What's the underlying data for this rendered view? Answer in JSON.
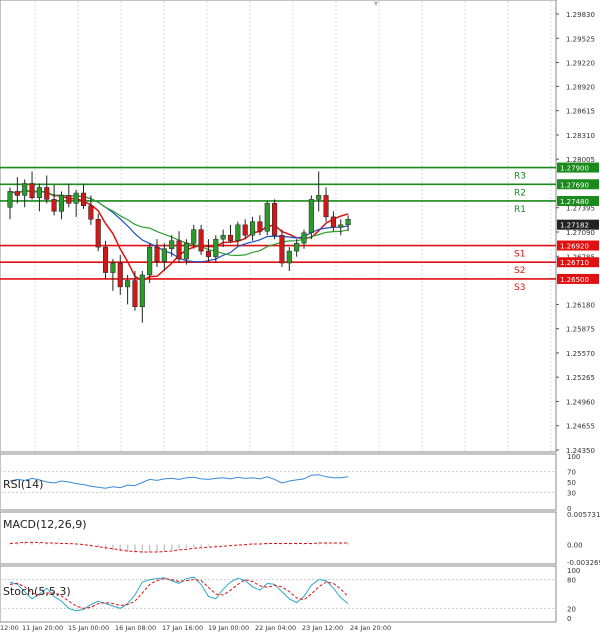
{
  "chart_data": {
    "type": "candlestick",
    "instrument_hint": "GBP/USD",
    "main_panel": {
      "y_axis_ticks": [
        "1.29830",
        "1.29525",
        "1.29220",
        "1.28920",
        "1.28615",
        "1.28310",
        "1.28005",
        "1.27395",
        "1.27090",
        "1.26785",
        "1.26180",
        "1.25875",
        "1.25570",
        "1.25265",
        "1.24960",
        "1.24655",
        "1.24350"
      ],
      "ylim": [
        1.2435,
        1.2983
      ],
      "current_price": {
        "value": 1.27182,
        "label": "1.27182"
      },
      "levels": [
        {
          "name": "R3",
          "value": 1.279,
          "label": "1.27900",
          "color": "#1a8a1a"
        },
        {
          "name": "R2",
          "value": 1.2769,
          "label": "1.27690",
          "color": "#1a8a1a"
        },
        {
          "name": "R1",
          "value": 1.2748,
          "label": "1.27480",
          "color": "#1a8a1a"
        },
        {
          "name": "S1",
          "value": 1.2692,
          "label": "1.26920",
          "color": "#e01010"
        },
        {
          "name": "S2",
          "value": 1.2671,
          "label": "1.26710",
          "color": "#e01010"
        },
        {
          "name": "S3",
          "value": 1.265,
          "label": "1.26500",
          "color": "#e01010"
        }
      ],
      "candles": [
        [
          1.274,
          1.2765,
          1.2725,
          1.276
        ],
        [
          1.276,
          1.2778,
          1.2745,
          1.2755
        ],
        [
          1.2755,
          1.2775,
          1.274,
          1.277
        ],
        [
          1.277,
          1.2785,
          1.275,
          1.2752
        ],
        [
          1.2752,
          1.277,
          1.2735,
          1.2765
        ],
        [
          1.2765,
          1.278,
          1.2745,
          1.275
        ],
        [
          1.275,
          1.2768,
          1.273,
          1.2735
        ],
        [
          1.2735,
          1.276,
          1.2725,
          1.2755
        ],
        [
          1.2755,
          1.277,
          1.274,
          1.2745
        ],
        [
          1.2745,
          1.2762,
          1.2728,
          1.2758
        ],
        [
          1.2758,
          1.277,
          1.2738,
          1.2742
        ],
        [
          1.2742,
          1.2755,
          1.2718,
          1.2725
        ],
        [
          1.2725,
          1.2732,
          1.2685,
          1.269
        ],
        [
          1.269,
          1.2698,
          1.265,
          1.2658
        ],
        [
          1.2658,
          1.2675,
          1.2635,
          1.267
        ],
        [
          1.267,
          1.268,
          1.263,
          1.264
        ],
        [
          1.264,
          1.2655,
          1.2618,
          1.2648
        ],
        [
          1.2648,
          1.266,
          1.261,
          1.2615
        ],
        [
          1.2615,
          1.266,
          1.2595,
          1.2655
        ],
        [
          1.2655,
          1.2695,
          1.2645,
          1.269
        ],
        [
          1.269,
          1.27,
          1.2665,
          1.2672
        ],
        [
          1.2672,
          1.2695,
          1.266,
          1.2688
        ],
        [
          1.2688,
          1.2705,
          1.2678,
          1.2698
        ],
        [
          1.2698,
          1.271,
          1.267,
          1.2675
        ],
        [
          1.2675,
          1.27,
          1.2668,
          1.2695
        ],
        [
          1.2695,
          1.2718,
          1.2688,
          1.2712
        ],
        [
          1.2712,
          1.2718,
          1.268,
          1.2685
        ],
        [
          1.2685,
          1.27,
          1.2672,
          1.2678
        ],
        [
          1.2678,
          1.2705,
          1.267,
          1.27
        ],
        [
          1.27,
          1.2712,
          1.269,
          1.2705
        ],
        [
          1.2705,
          1.2718,
          1.2695,
          1.2698
        ],
        [
          1.2698,
          1.2722,
          1.2692,
          1.2718
        ],
        [
          1.2718,
          1.2725,
          1.27,
          1.2705
        ],
        [
          1.2705,
          1.2728,
          1.2698,
          1.2722
        ],
        [
          1.2722,
          1.273,
          1.2705,
          1.271
        ],
        [
          1.271,
          1.2748,
          1.2705,
          1.2745
        ],
        [
          1.2745,
          1.275,
          1.27,
          1.2705
        ],
        [
          1.2705,
          1.2712,
          1.2665,
          1.267
        ],
        [
          1.267,
          1.269,
          1.266,
          1.2685
        ],
        [
          1.2685,
          1.27,
          1.2678,
          1.2695
        ],
        [
          1.2695,
          1.2712,
          1.2688,
          1.2708
        ],
        [
          1.2708,
          1.2755,
          1.27,
          1.275
        ],
        [
          1.275,
          1.2785,
          1.2735,
          1.2755
        ],
        [
          1.2755,
          1.2765,
          1.2722,
          1.2728
        ],
        [
          1.2728,
          1.2735,
          1.271,
          1.2715
        ],
        [
          1.2715,
          1.2725,
          1.2705,
          1.2718
        ],
        [
          1.2718,
          1.273,
          1.271,
          1.2725
        ]
      ],
      "x_axis_labels": [
        "12:00",
        "11 Jan 20:00",
        "15 Jan 00:00",
        "16 Jan 08:00",
        "17 Jan 16:00",
        "19 Jan 00:00",
        "22 Jan 04:00",
        "23 Jan 12:00",
        "24 Jan 20:00"
      ],
      "moving_averages": [
        {
          "name": "MA fast",
          "color": "#e01010"
        },
        {
          "name": "MA medium",
          "color": "#2050c8"
        },
        {
          "name": "MA slow",
          "color": "#30a030"
        }
      ]
    },
    "rsi_panel": {
      "title": "RSI(14)",
      "y_axis_ticks": [
        "100",
        "70",
        "50",
        "30",
        "0"
      ],
      "ylim": [
        0,
        100
      ],
      "values": [
        52,
        55,
        53,
        57,
        54,
        50,
        48,
        52,
        50,
        47,
        45,
        42,
        40,
        38,
        41,
        39,
        44,
        43,
        49,
        55,
        53,
        56,
        57,
        55,
        58,
        59,
        56,
        55,
        57,
        58,
        56,
        59,
        57,
        58,
        56,
        60,
        55,
        48,
        52,
        54,
        56,
        63,
        64,
        60,
        58,
        58,
        60
      ],
      "color": "#3a8ad8"
    },
    "macd_panel": {
      "title": "MACD(12,26,9)",
      "y_axis_ticks": [
        "0.005731",
        "0.00",
        "-0.003269"
      ],
      "ylim": [
        -0.003269,
        0.005731
      ],
      "histogram": [
        0.0003,
        0.0004,
        0.0005,
        0.0005,
        0.0004,
        0.0003,
        0.0002,
        0.0002,
        0.0001,
        0.0,
        -0.0001,
        -0.0003,
        -0.0006,
        -0.0009,
        -0.0011,
        -0.0013,
        -0.0014,
        -0.0015,
        -0.0016,
        -0.0015,
        -0.0014,
        -0.0012,
        -0.001,
        -0.0008,
        -0.0006,
        -0.0005,
        -0.0004,
        -0.0003,
        -0.0002,
        -0.0001,
        0.0,
        0.0001,
        0.0001,
        0.0002,
        0.0002,
        0.0003,
        0.0003,
        0.0002,
        0.0001,
        0.0001,
        0.0002,
        0.0003,
        0.0004,
        0.0004,
        0.0003,
        0.0003,
        0.0003
      ],
      "signal": [
        0.0002,
        0.0003,
        0.0004,
        0.0004,
        0.0004,
        0.0003,
        0.0003,
        0.0002,
        0.0002,
        0.0001,
        0.0,
        -0.0002,
        -0.0004,
        -0.0006,
        -0.0008,
        -0.001,
        -0.0012,
        -0.0013,
        -0.0014,
        -0.0014,
        -0.0014,
        -0.0013,
        -0.0012,
        -0.001,
        -0.0009,
        -0.0007,
        -0.0006,
        -0.0005,
        -0.0004,
        -0.0003,
        -0.0002,
        -0.0001,
        0.0,
        0.0001,
        0.0001,
        0.0002,
        0.0002,
        0.0002,
        0.0002,
        0.0002,
        0.0002,
        0.0002,
        0.0003,
        0.0003,
        0.0003,
        0.0003,
        0.0003
      ],
      "histogram_color": "#c8c8c8",
      "signal_color": "#e01010"
    },
    "stoch_panel": {
      "title": "Stoch(5,5,3)",
      "y_axis_ticks": [
        "100",
        "80",
        "20",
        "0"
      ],
      "ylim": [
        0,
        100
      ],
      "k": [
        75,
        70,
        55,
        40,
        50,
        62,
        45,
        35,
        20,
        15,
        18,
        28,
        35,
        30,
        25,
        20,
        30,
        48,
        75,
        80,
        82,
        84,
        78,
        72,
        82,
        85,
        70,
        45,
        40,
        60,
        75,
        83,
        78,
        65,
        58,
        72,
        70,
        55,
        40,
        32,
        45,
        68,
        80,
        78,
        62,
        42,
        30
      ],
      "d": [
        70,
        72,
        65,
        52,
        48,
        52,
        52,
        46,
        35,
        25,
        20,
        22,
        30,
        32,
        30,
        26,
        28,
        35,
        52,
        70,
        78,
        82,
        80,
        76,
        78,
        80,
        78,
        64,
        50,
        48,
        58,
        70,
        80,
        76,
        67,
        64,
        68,
        65,
        55,
        42,
        38,
        50,
        65,
        75,
        72,
        60,
        45
      ],
      "k_color": "#30a8c8",
      "d_color": "#e01010"
    }
  }
}
